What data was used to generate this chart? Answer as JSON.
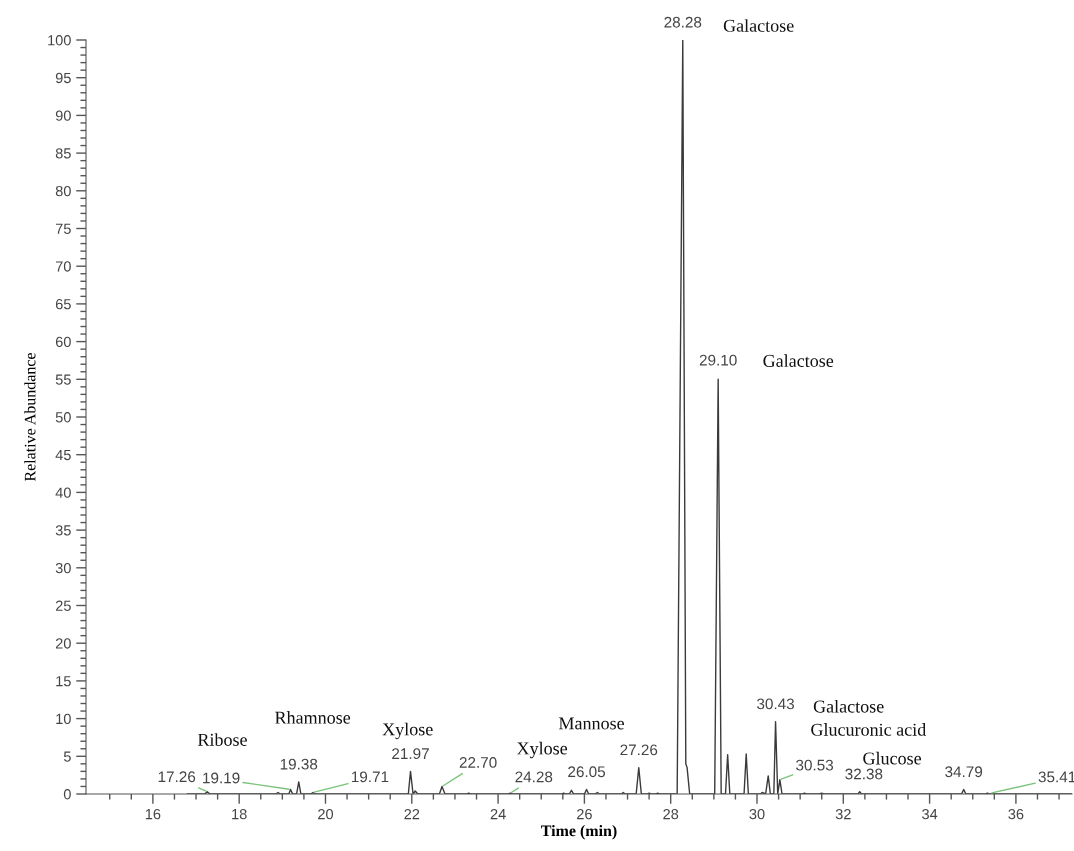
{
  "chart_data": {
    "type": "line",
    "xlabel": "Time (min)",
    "ylabel": "Relative Abundance",
    "x": [
      16.8,
      17.2,
      17.26,
      17.32,
      18.85,
      18.9,
      18.95,
      19.15,
      19.19,
      19.24,
      19.33,
      19.38,
      19.43,
      19.66,
      19.71,
      19.76,
      21.92,
      21.97,
      22.03,
      22.08,
      22.14,
      22.64,
      22.7,
      22.77,
      23.28,
      23.32,
      23.36,
      24.24,
      24.28,
      24.32,
      25.48,
      25.52,
      25.56,
      25.65,
      25.7,
      25.75,
      26.0,
      26.05,
      26.1,
      26.25,
      26.3,
      26.35,
      26.86,
      26.9,
      26.94,
      27.2,
      27.26,
      27.32,
      27.46,
      27.5,
      27.54,
      27.66,
      27.7,
      27.74,
      28.15,
      28.28,
      28.35,
      28.38,
      28.44,
      29.02,
      29.1,
      29.17,
      29.27,
      29.32,
      29.37,
      29.7,
      29.75,
      29.8,
      30.08,
      30.12,
      30.2,
      30.26,
      30.31,
      30.39,
      30.43,
      30.48,
      30.53,
      30.58,
      31.05,
      31.1,
      31.15,
      31.45,
      31.5,
      31.55,
      32.34,
      32.38,
      32.42,
      34.74,
      34.79,
      34.84,
      35.3,
      35.34,
      35.38,
      37.3
    ],
    "series": [
      {
        "color": "#3a3a3a",
        "values": [
          0,
          0,
          0.3,
          0,
          0,
          0.2,
          0,
          0,
          0.6,
          0,
          0,
          1.6,
          0,
          0,
          0.2,
          0,
          0,
          3.0,
          0,
          0.4,
          0,
          0,
          1.0,
          0,
          0,
          0.1,
          0,
          0,
          0.1,
          0,
          0,
          0.1,
          0,
          0,
          0.5,
          0,
          0,
          0.6,
          0,
          0,
          0.2,
          0,
          0,
          0.2,
          0,
          0,
          3.5,
          0,
          0,
          0.1,
          0,
          0,
          0.1,
          0,
          0,
          100,
          4,
          3.5,
          0,
          0,
          55,
          0,
          0,
          5.2,
          0,
          0,
          5.3,
          0,
          0,
          0.2,
          0,
          2.4,
          0,
          0,
          9.6,
          0,
          1.9,
          0,
          0,
          0.1,
          0,
          0,
          0.1,
          0,
          0,
          0.3,
          0,
          0,
          0.6,
          0,
          0,
          0.1,
          0,
          0
        ]
      }
    ],
    "xlim": [
      14.45,
      37.3
    ],
    "ylim": [
      0,
      100
    ],
    "xticks": [
      {
        "value": 15,
        "label": null
      },
      {
        "value": 15.5,
        "label": null
      },
      16,
      {
        "value": 16.5,
        "label": null
      },
      {
        "value": 17,
        "label": null
      },
      {
        "value": 17.5,
        "label": null
      },
      18,
      {
        "value": 18.5,
        "label": null
      },
      {
        "value": 19,
        "label": null
      },
      {
        "value": 19.5,
        "label": null
      },
      20,
      {
        "value": 20.5,
        "label": null
      },
      {
        "value": 21,
        "label": null
      },
      {
        "value": 21.5,
        "label": null
      },
      22,
      {
        "value": 22.5,
        "label": null
      },
      {
        "value": 23,
        "label": null
      },
      {
        "value": 23.5,
        "label": null
      },
      24,
      {
        "value": 24.5,
        "label": null
      },
      {
        "value": 25,
        "label": null
      },
      {
        "value": 25.5,
        "label": null
      },
      26,
      {
        "value": 26.5,
        "label": null
      },
      {
        "value": 27,
        "label": null
      },
      {
        "value": 27.5,
        "label": null
      },
      28,
      {
        "value": 28.5,
        "label": null
      },
      {
        "value": 29,
        "label": null
      },
      {
        "value": 29.5,
        "label": null
      },
      30,
      {
        "value": 30.5,
        "label": null
      },
      {
        "value": 31,
        "label": null
      },
      {
        "value": 31.5,
        "label": null
      },
      32,
      {
        "value": 32.5,
        "label": null
      },
      {
        "value": 33,
        "label": null
      },
      {
        "value": 33.5,
        "label": null
      },
      34,
      {
        "value": 34.5,
        "label": null
      },
      {
        "value": 35,
        "label": null
      },
      {
        "value": 35.5,
        "label": null
      },
      36,
      {
        "value": 36.5,
        "label": null
      },
      {
        "value": 37,
        "label": null
      }
    ],
    "yticks": [
      0,
      {
        "value": 1,
        "label": null
      },
      {
        "value": 2,
        "label": null
      },
      {
        "value": 3,
        "label": null
      },
      {
        "value": 4,
        "label": null
      },
      5,
      {
        "value": 6,
        "label": null
      },
      {
        "value": 7,
        "label": null
      },
      {
        "value": 8,
        "label": null
      },
      {
        "value": 9,
        "label": null
      },
      10,
      {
        "value": 11,
        "label": null
      },
      {
        "value": 12,
        "label": null
      },
      {
        "value": 13,
        "label": null
      },
      {
        "value": 14,
        "label": null
      },
      15,
      {
        "value": 16,
        "label": null
      },
      {
        "value": 17,
        "label": null
      },
      {
        "value": 18,
        "label": null
      },
      {
        "value": 19,
        "label": null
      },
      20,
      {
        "value": 21,
        "label": null
      },
      {
        "value": 22,
        "label": null
      },
      {
        "value": 23,
        "label": null
      },
      {
        "value": 24,
        "label": null
      },
      25,
      {
        "value": 26,
        "label": null
      },
      {
        "value": 27,
        "label": null
      },
      {
        "value": 28,
        "label": null
      },
      {
        "value": 29,
        "label": null
      },
      30,
      {
        "value": 31,
        "label": null
      },
      {
        "value": 32,
        "label": null
      },
      {
        "value": 33,
        "label": null
      },
      {
        "value": 34,
        "label": null
      },
      35,
      {
        "value": 36,
        "label": null
      },
      {
        "value": 37,
        "label": null
      },
      {
        "value": 38,
        "label": null
      },
      {
        "value": 39,
        "label": null
      },
      40,
      {
        "value": 41,
        "label": null
      },
      {
        "value": 42,
        "label": null
      },
      {
        "value": 43,
        "label": null
      },
      {
        "value": 44,
        "label": null
      },
      45,
      {
        "value": 46,
        "label": null
      },
      {
        "value": 47,
        "label": null
      },
      {
        "value": 48,
        "label": null
      },
      {
        "value": 49,
        "label": null
      },
      50,
      {
        "value": 51,
        "label": null
      },
      {
        "value": 52,
        "label": null
      },
      {
        "value": 53,
        "label": null
      },
      {
        "value": 54,
        "label": null
      },
      55,
      {
        "value": 56,
        "label": null
      },
      {
        "value": 57,
        "label": null
      },
      {
        "value": 58,
        "label": null
      },
      {
        "value": 59,
        "label": null
      },
      60,
      {
        "value": 61,
        "label": null
      },
      {
        "value": 62,
        "label": null
      },
      {
        "value": 63,
        "label": null
      },
      {
        "value": 64,
        "label": null
      },
      65,
      {
        "value": 66,
        "label": null
      },
      {
        "value": 67,
        "label": null
      },
      {
        "value": 68,
        "label": null
      },
      {
        "value": 69,
        "label": null
      },
      70,
      {
        "value": 71,
        "label": null
      },
      {
        "value": 72,
        "label": null
      },
      {
        "value": 73,
        "label": null
      },
      {
        "value": 74,
        "label": null
      },
      75,
      {
        "value": 76,
        "label": null
      },
      {
        "value": 77,
        "label": null
      },
      {
        "value": 78,
        "label": null
      },
      {
        "value": 79,
        "label": null
      },
      80,
      {
        "value": 81,
        "label": null
      },
      {
        "value": 82,
        "label": null
      },
      {
        "value": 83,
        "label": null
      },
      {
        "value": 84,
        "label": null
      },
      85,
      {
        "value": 86,
        "label": null
      },
      {
        "value": 87,
        "label": null
      },
      {
        "value": 88,
        "label": null
      },
      {
        "value": 89,
        "label": null
      },
      90,
      {
        "value": 91,
        "label": null
      },
      {
        "value": 92,
        "label": null
      },
      {
        "value": 93,
        "label": null
      },
      {
        "value": 94,
        "label": null
      },
      95,
      {
        "value": 96,
        "label": null
      },
      {
        "value": 97,
        "label": null
      },
      {
        "value": 98,
        "label": null
      },
      {
        "value": 99,
        "label": null
      },
      100
    ],
    "grid": false,
    "marker": "none",
    "line_style": "solid",
    "annotations": [
      {
        "text": "17.26",
        "x": 17.26,
        "y": 0.3
      },
      {
        "text": "19.19",
        "x": 19.19,
        "y": 0.6
      },
      {
        "text": "19.38",
        "x": 19.38,
        "y": 1.6
      },
      {
        "text": "19.71",
        "x": 19.71,
        "y": 0.2
      },
      {
        "text": "21.97",
        "x": 21.97,
        "y": 3.0
      },
      {
        "text": "22.70",
        "x": 22.7,
        "y": 1.0
      },
      {
        "text": "24.28",
        "x": 24.28,
        "y": 0.1
      },
      {
        "text": "26.05",
        "x": 26.05,
        "y": 0.6
      },
      {
        "text": "27.26",
        "x": 27.26,
        "y": 3.5
      },
      {
        "text": "28.28",
        "x": 28.28,
        "y": 100
      },
      {
        "text": "29.10",
        "x": 29.1,
        "y": 55
      },
      {
        "text": "30.43",
        "x": 30.43,
        "y": 9.6
      },
      {
        "text": "30.53",
        "x": 30.53,
        "y": 1.9
      },
      {
        "text": "32.38",
        "x": 32.38,
        "y": 0.3
      },
      {
        "text": "34.79",
        "x": 34.79,
        "y": 0.6
      },
      {
        "text": "35.41",
        "x": 35.41,
        "y": 0.1
      },
      "Ribose",
      "Rhamnose",
      {
        "text": "Xylose",
        "x": 21.97,
        "y": 3.0
      },
      {
        "text": "Xylose",
        "x": 24.28,
        "y": 0.1
      },
      {
        "text": "Mannose",
        "x": 27.26,
        "y": 3.5
      },
      {
        "text": "Galactose",
        "x": 28.28,
        "y": 100
      },
      {
        "text": "Galactose",
        "x": 29.1,
        "y": 55
      },
      {
        "text": "Galactose",
        "x": 30.43,
        "y": 9.6
      },
      {
        "text": "Glucuronic acid",
        "x": 30.53,
        "y": 1.9
      },
      {
        "text": "Glucose",
        "x": 32.38,
        "y": 0.3
      }
    ]
  }
}
